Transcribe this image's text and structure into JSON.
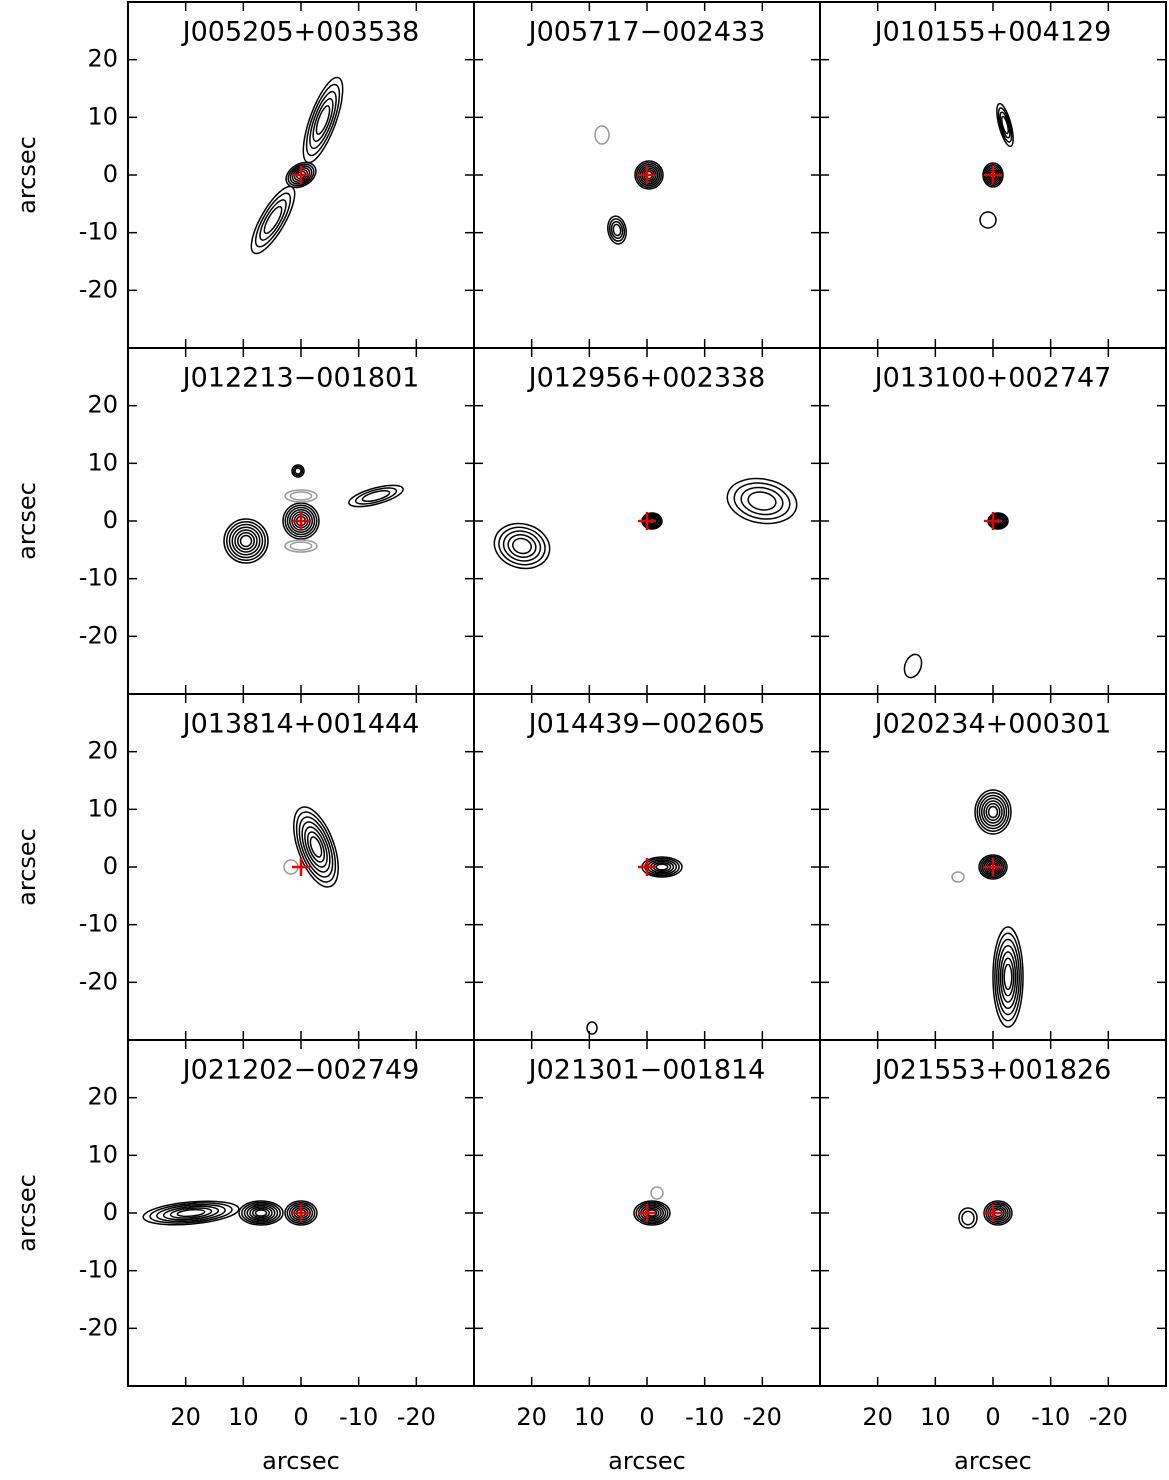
{
  "chart_data": [
    {
      "type": "contour",
      "title": "J005205+003538",
      "xlim": [
        30,
        -30
      ],
      "ylim": [
        -30,
        30
      ],
      "xticks": [
        20,
        10,
        0,
        -10,
        -20
      ],
      "yticks": [
        20,
        10,
        0,
        -10,
        -20
      ],
      "ylabel": "arcsec"
    },
    {
      "type": "contour",
      "title": "J005717−002433",
      "xlim": [
        30,
        -30
      ],
      "ylim": [
        -30,
        30
      ],
      "xticks": [
        20,
        10,
        0,
        -10,
        -20
      ],
      "yticks": [
        20,
        10,
        0,
        -10,
        -20
      ]
    },
    {
      "type": "contour",
      "title": "J010155+004129",
      "xlim": [
        30,
        -30
      ],
      "ylim": [
        -30,
        30
      ],
      "xticks": [
        20,
        10,
        0,
        -10,
        -20
      ],
      "yticks": [
        20,
        10,
        0,
        -10,
        -20
      ]
    },
    {
      "type": "contour",
      "title": "J012213−001801",
      "xlim": [
        30,
        -30
      ],
      "ylim": [
        -30,
        30
      ],
      "xticks": [
        20,
        10,
        0,
        -10,
        -20
      ],
      "yticks": [
        20,
        10,
        0,
        -10,
        -20
      ],
      "ylabel": "arcsec"
    },
    {
      "type": "contour",
      "title": "J012956+002338",
      "xlim": [
        30,
        -30
      ],
      "ylim": [
        -30,
        30
      ],
      "xticks": [
        20,
        10,
        0,
        -10,
        -20
      ],
      "yticks": [
        20,
        10,
        0,
        -10,
        -20
      ]
    },
    {
      "type": "contour",
      "title": "J013100+002747",
      "xlim": [
        30,
        -30
      ],
      "ylim": [
        -30,
        30
      ],
      "xticks": [
        20,
        10,
        0,
        -10,
        -20
      ],
      "yticks": [
        20,
        10,
        0,
        -10,
        -20
      ]
    },
    {
      "type": "contour",
      "title": "J013814+001444",
      "xlim": [
        30,
        -30
      ],
      "ylim": [
        -30,
        30
      ],
      "xticks": [
        20,
        10,
        0,
        -10,
        -20
      ],
      "yticks": [
        20,
        10,
        0,
        -10,
        -20
      ],
      "ylabel": "arcsec"
    },
    {
      "type": "contour",
      "title": "J014439−002605",
      "xlim": [
        30,
        -30
      ],
      "ylim": [
        -30,
        30
      ],
      "xticks": [
        20,
        10,
        0,
        -10,
        -20
      ],
      "yticks": [
        20,
        10,
        0,
        -10,
        -20
      ]
    },
    {
      "type": "contour",
      "title": "J020234+000301",
      "xlim": [
        30,
        -30
      ],
      "ylim": [
        -30,
        30
      ],
      "xticks": [
        20,
        10,
        0,
        -10,
        -20
      ],
      "yticks": [
        20,
        10,
        0,
        -10,
        -20
      ]
    },
    {
      "type": "contour",
      "title": "J021202−002749",
      "xlim": [
        30,
        -30
      ],
      "ylim": [
        -30,
        30
      ],
      "xticks": [
        20,
        10,
        0,
        -10,
        -20
      ],
      "yticks": [
        20,
        10,
        0,
        -10,
        -20
      ],
      "xlabel": "arcsec",
      "ylabel": "arcsec"
    },
    {
      "type": "contour",
      "title": "J021301−001814",
      "xlim": [
        30,
        -30
      ],
      "ylim": [
        -30,
        30
      ],
      "xticks": [
        20,
        10,
        0,
        -10,
        -20
      ],
      "yticks": [
        20,
        10,
        0,
        -10,
        -20
      ],
      "xlabel": "arcsec"
    },
    {
      "type": "contour",
      "title": "J021553+001826",
      "xlim": [
        30,
        -30
      ],
      "ylim": [
        -30,
        30
      ],
      "xticks": [
        20,
        10,
        0,
        -10,
        -20
      ],
      "yticks": [
        20,
        10,
        0,
        -10,
        -20
      ],
      "xlabel": "arcsec"
    }
  ]
}
